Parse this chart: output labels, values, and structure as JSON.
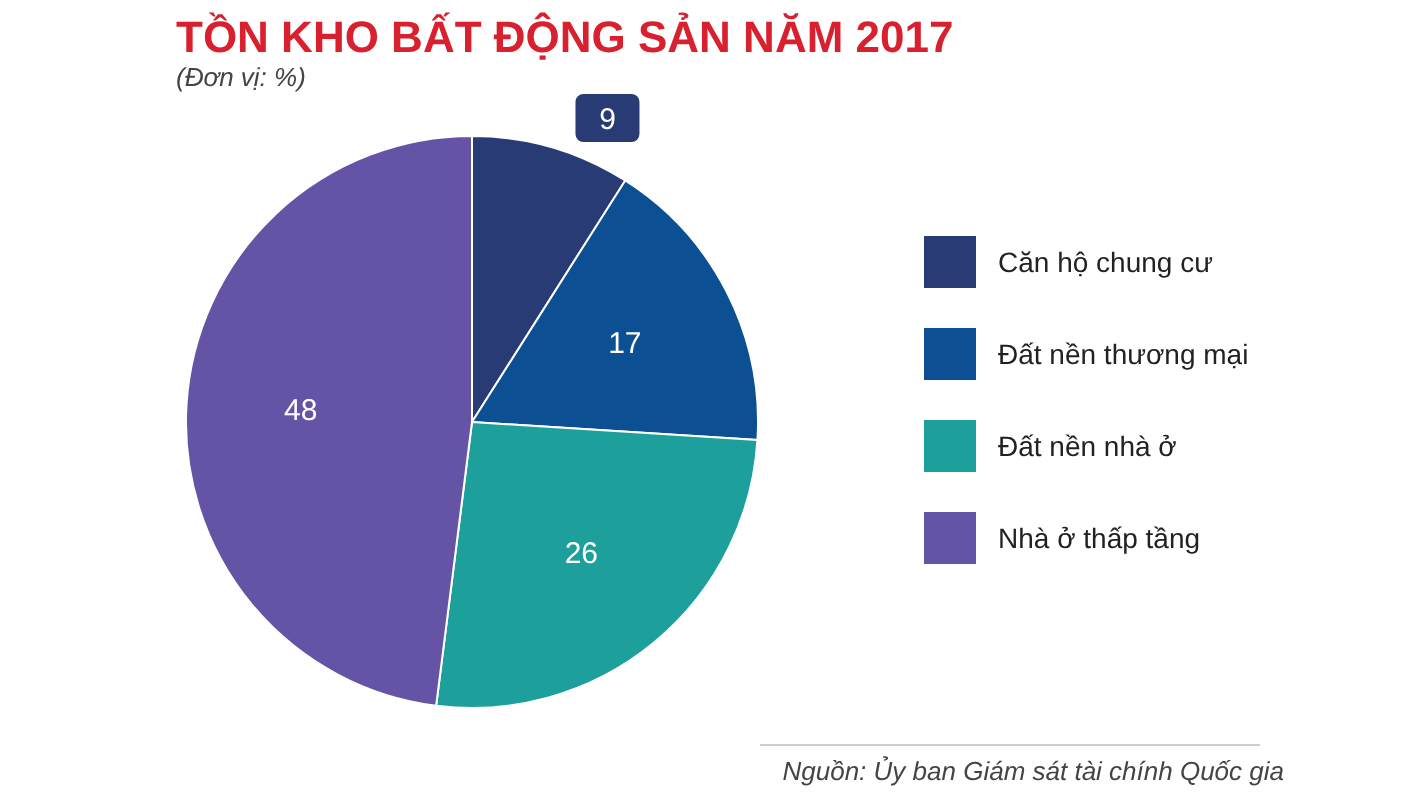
{
  "chart_data": {
    "type": "pie",
    "title": "TỒN KHO BẤT ĐỘNG SẢN NĂM 2017",
    "subtitle": "(Đơn vị: %)",
    "categories": [
      "Căn hộ chung cư",
      "Đất nền thương mại",
      "Đất nền nhà ở",
      "Nhà ở thấp tầng"
    ],
    "values": [
      9,
      17,
      26,
      48
    ],
    "colors": [
      "#283b75",
      "#0c4f92",
      "#1d9f9c",
      "#6553a6"
    ],
    "data_labels": true,
    "legend": "right",
    "annotations": [
      "Nguồn: Ủy ban Giám sát tài chính Quốc gia"
    ]
  }
}
